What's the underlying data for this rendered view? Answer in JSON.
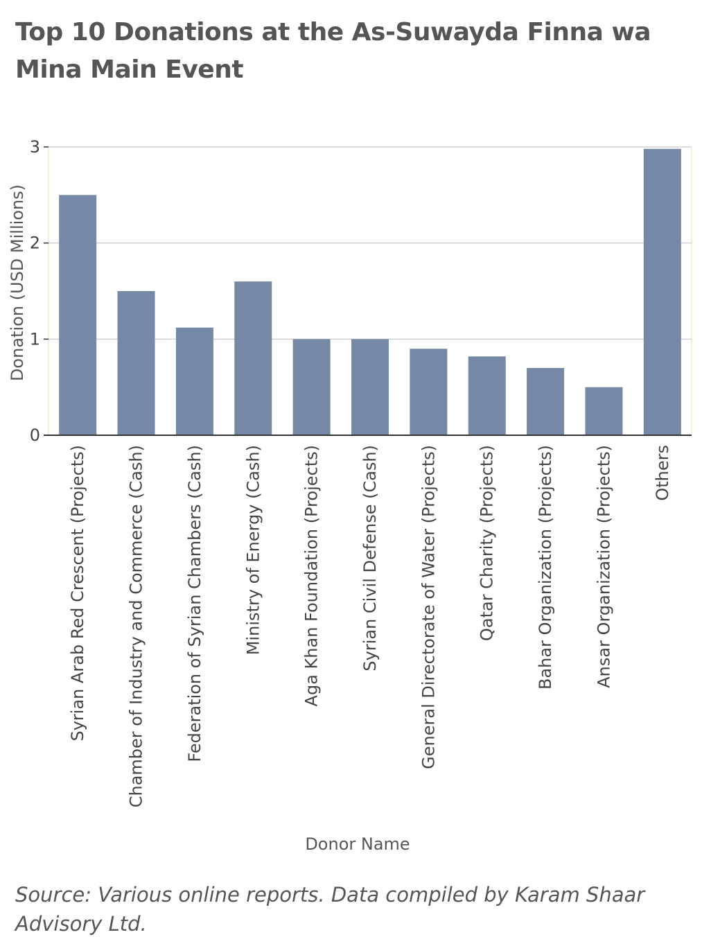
{
  "title": "Top 10 Donations at the As-Suwayda Finna wa Mina Main Event",
  "source": "Source: Various online reports. Data compiled by Karam Shaar Advisory Ltd.",
  "colors": {
    "bar": "#7589a6",
    "grid": "#d0d0d0",
    "axis": "#333333",
    "frame": "#eeeed0"
  },
  "chart_data": {
    "type": "bar",
    "xlabel": "Donor Name",
    "ylabel": "Donation (USD Millions)",
    "ylim": [
      0,
      3
    ],
    "yticks": [
      0,
      1,
      2,
      3
    ],
    "grid": true,
    "categories": [
      "Syrian Arab Red Crescent (Projects)",
      "Chamber of Industry and Commerce (Cash)",
      "Federation of Syrian Chambers (Cash)",
      "Ministry of Energy (Cash)",
      "Aga Khan Foundation (Projects)",
      "Syrian Civil Defense (Cash)",
      "General Directorate of Water (Projects)",
      "Qatar Charity (Projects)",
      "Bahar Organization (Projects)",
      "Ansar Organization (Projects)",
      "Others"
    ],
    "values": [
      2.5,
      1.5,
      1.12,
      1.6,
      1.0,
      1.0,
      0.9,
      0.82,
      0.7,
      0.5,
      2.98
    ]
  }
}
